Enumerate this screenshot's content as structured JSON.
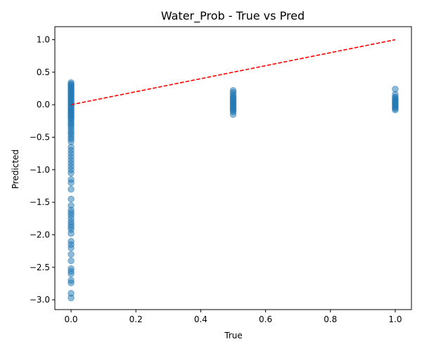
{
  "chart_data": {
    "type": "scatter",
    "title": "Water_Prob - True vs Pred",
    "xlabel": "True",
    "ylabel": "Predicted",
    "xlim": [
      -0.05,
      1.05
    ],
    "ylim": [
      -3.15,
      1.2
    ],
    "xticks": [
      0.0,
      0.2,
      0.4,
      0.6,
      0.8,
      1.0
    ],
    "xtick_labels": [
      "0.0",
      "0.2",
      "0.4",
      "0.6",
      "0.8",
      "1.0"
    ],
    "yticks": [
      -3.0,
      -2.5,
      -2.0,
      -1.5,
      -1.0,
      -0.5,
      0.0,
      0.5,
      1.0
    ],
    "ytick_labels": [
      "−3.0",
      "−2.5",
      "−2.0",
      "−1.5",
      "−1.0",
      "−0.5",
      "0.0",
      "0.5",
      "1.0"
    ],
    "grid": false,
    "point_color": "#1f77b4",
    "reference_line": {
      "x": [
        0,
        1
      ],
      "y": [
        0,
        1
      ],
      "color": "#ff0000",
      "style": "dashed"
    },
    "series": [
      {
        "x_value": 0.0,
        "y": [
          0.34,
          0.32,
          0.3,
          0.28,
          0.26,
          0.24,
          0.22,
          0.2,
          0.18,
          0.16,
          0.14,
          0.12,
          0.1,
          0.08,
          0.06,
          0.04,
          0.02,
          0.0,
          -0.02,
          -0.04,
          -0.06,
          -0.08,
          -0.1,
          -0.12,
          -0.14,
          -0.16,
          -0.18,
          -0.2,
          -0.22,
          -0.25,
          -0.28,
          -0.3,
          -0.33,
          -0.36,
          -0.4,
          -0.43,
          -0.46,
          -0.5,
          -0.53,
          -0.57,
          -0.65,
          -0.7,
          -0.75,
          -0.8,
          -0.85,
          -0.9,
          -0.95,
          -1.0,
          -1.05,
          -1.15,
          -1.2,
          -1.3,
          -1.45,
          -1.55,
          -1.62,
          -1.66,
          -1.7,
          -1.75,
          -1.8,
          -1.84,
          -1.88,
          -1.92,
          -1.98,
          -2.1,
          -2.15,
          -2.2,
          -2.3,
          -2.4,
          -2.52,
          -2.56,
          -2.6,
          -2.7,
          -2.74,
          -2.9,
          -2.97
        ]
      },
      {
        "x_value": 0.5,
        "y": [
          0.22,
          0.19,
          0.16,
          0.13,
          0.11,
          0.09,
          0.07,
          0.05,
          0.03,
          0.01,
          -0.01,
          -0.03,
          -0.05,
          -0.07,
          -0.09,
          -0.11,
          -0.15
        ]
      },
      {
        "x_value": 1.0,
        "y": [
          0.24,
          0.16,
          0.12,
          0.1,
          0.08,
          0.06,
          0.04,
          0.02,
          0.0,
          -0.02,
          -0.04,
          -0.06,
          -0.08
        ]
      }
    ]
  }
}
